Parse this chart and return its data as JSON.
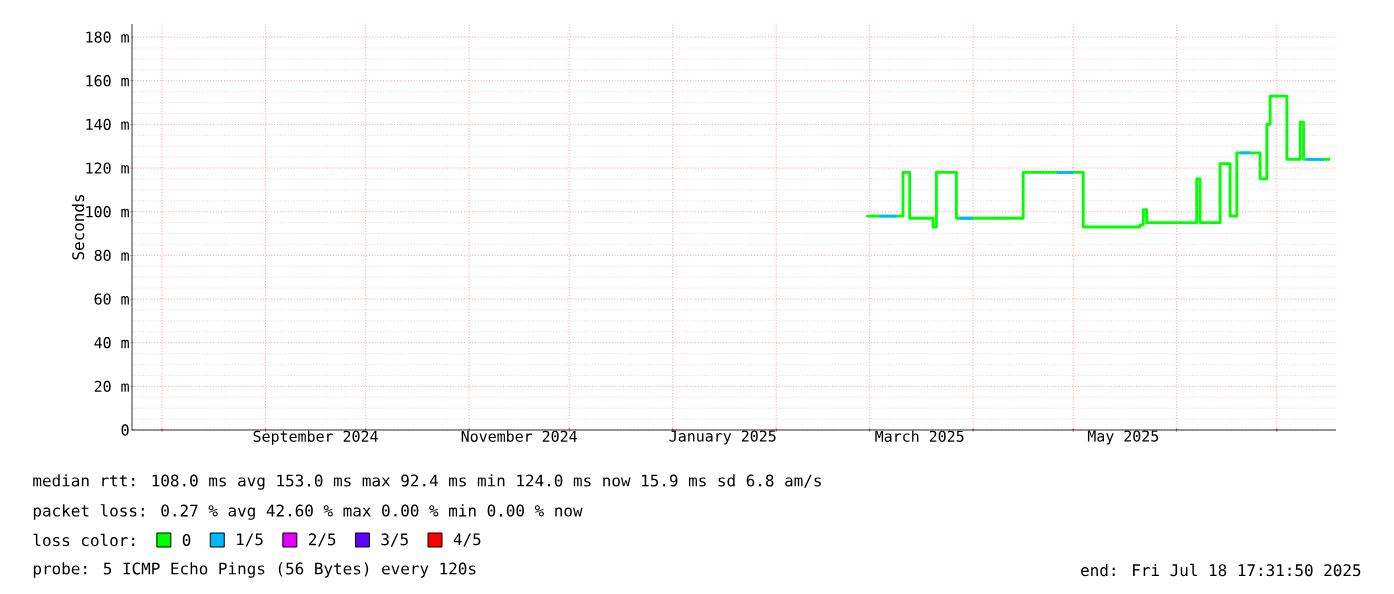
{
  "chart_data": {
    "type": "step",
    "ylabel": "Seconds",
    "legend_title": "loss color:",
    "annotations": [
      "median rtt: 108.0 ms avg 153.0 ms max 92.4 ms min 124.0 ms now 15.9 ms sd 6.8 am/s",
      "packet loss: 0.27 % avg 42.60 % max 0.00 % min 0.00 % now",
      "probe: 5 ICMP Echo Pings (56 Bytes) every 120s",
      "end: Fri Jul 18 17:31:50 2025"
    ],
    "xlim": [
      "2024-07-23",
      "2025-07-18T17:31"
    ],
    "xticks": [
      {
        "value": "2024-08-01",
        "label": null
      },
      {
        "value": "2024-09-01",
        "label": null
      },
      {
        "value": "2024-10-01",
        "label": null
      },
      {
        "value": "2024-11-01",
        "label": null
      },
      {
        "value": "2024-12-01",
        "label": null
      },
      {
        "value": "2025-01-01",
        "label": null
      },
      {
        "value": "2025-02-01",
        "label": null
      },
      {
        "value": "2025-03-01",
        "label": null
      },
      {
        "value": "2025-04-01",
        "label": null
      },
      {
        "value": "2025-05-01",
        "label": null
      },
      {
        "value": "2025-06-01",
        "label": null
      },
      {
        "value": "2025-07-01",
        "label": null
      },
      {
        "value": "2024-09-16",
        "label": "September 2024"
      },
      {
        "value": "2024-11-16",
        "label": "November 2024"
      },
      {
        "value": "2025-01-16",
        "label": "January 2025"
      },
      {
        "value": "2025-03-16",
        "label": "March 2025"
      },
      {
        "value": "2025-05-16",
        "label": "May 2025"
      }
    ],
    "ylim": [
      0,
      186
    ],
    "yticks": [
      0,
      {
        "value": 20,
        "label": "20 m"
      },
      {
        "value": 40,
        "label": "40 m"
      },
      {
        "value": 60,
        "label": "60 m"
      },
      {
        "value": 80,
        "label": "80 m"
      },
      {
        "value": 100,
        "label": "100 m"
      },
      {
        "value": 120,
        "label": "120 m"
      },
      {
        "value": 140,
        "label": "140 m"
      },
      {
        "value": 160,
        "label": "160 m"
      },
      {
        "value": 180,
        "label": "180 m"
      }
    ],
    "grid": true,
    "legend": "bottom",
    "series": [
      {
        "name": "0",
        "color": "#00ff00",
        "x": [
          "2025-02-28",
          "2025-03-11",
          "2025-03-13",
          "2025-03-20",
          "2025-03-21",
          "2025-03-27",
          "2025-04-16",
          "2025-05-04",
          "2025-05-21",
          "2025-05-22",
          "2025-05-23",
          "2025-06-07",
          "2025-06-08",
          "2025-06-14",
          "2025-06-17",
          "2025-06-19",
          "2025-06-26",
          "2025-06-28",
          "2025-06-29",
          "2025-07-04",
          "2025-07-08",
          "2025-07-09",
          "2025-07-17"
        ],
        "values": [
          98,
          118,
          97,
          93,
          118,
          97,
          118,
          93,
          94,
          101,
          95,
          115,
          95,
          122,
          98,
          127,
          115,
          140,
          153,
          124,
          141,
          124,
          124
        ]
      },
      {
        "name": "1/5",
        "color": "#00b8ff",
        "x": [
          "2025-03-04",
          "2025-03-09",
          "2025-03-10",
          "2025-03-28",
          "2025-04-01",
          "2025-04-02",
          "2025-04-26",
          "2025-05-01",
          "2025-05-02",
          "2025-06-20",
          "2025-06-23",
          "2025-06-24",
          "2025-07-10",
          "2025-07-15"
        ],
        "values": [
          98,
          98,
          null,
          97,
          97,
          null,
          118,
          118,
          null,
          127,
          127,
          null,
          124,
          124
        ]
      },
      {
        "name": "2/5",
        "color": "#e000ff"
      },
      {
        "name": "3/5",
        "color": "#6000ff"
      },
      {
        "name": "4/5",
        "color": "#ff0000"
      }
    ]
  }
}
